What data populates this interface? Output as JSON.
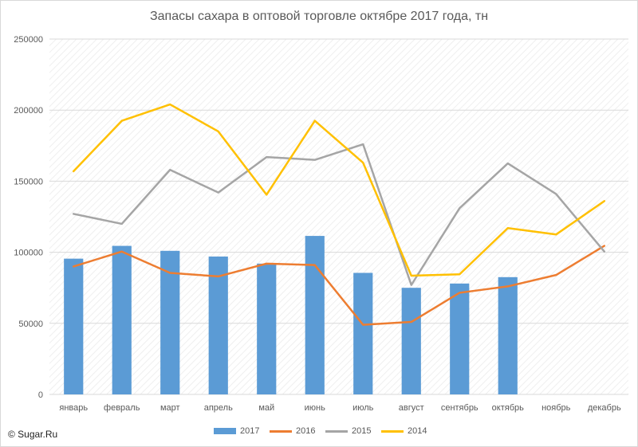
{
  "chart_data": {
    "type": "bar+line",
    "title": "Запасы сахара в оптовой торговле октябре 2017 года, тн",
    "categories": [
      "январь",
      "февраль",
      "март",
      "апрель",
      "май",
      "июнь",
      "июль",
      "август",
      "сентябрь",
      "октябрь",
      "ноябрь",
      "декабрь"
    ],
    "ylim": [
      0,
      250000
    ],
    "yticks": [
      "0",
      "50000",
      "100000",
      "150000",
      "200000",
      "250000"
    ],
    "grid": true,
    "legend_position": "bottom",
    "series": [
      {
        "name": "2017",
        "kind": "bar",
        "color": "#5b9bd5",
        "values": [
          95500,
          104500,
          101000,
          97000,
          92000,
          111500,
          85500,
          75000,
          78000,
          82500,
          null,
          null
        ]
      },
      {
        "name": "2016",
        "kind": "line",
        "color": "#ed7d31",
        "values": [
          90000,
          100500,
          85500,
          83000,
          92000,
          91000,
          49000,
          51000,
          71500,
          76000,
          84000,
          104500
        ]
      },
      {
        "name": "2015",
        "kind": "line",
        "color": "#a5a5a5",
        "values": [
          127000,
          120000,
          158000,
          142000,
          167000,
          165000,
          176000,
          77000,
          131000,
          162500,
          141000,
          100500
        ]
      },
      {
        "name": "2014",
        "kind": "line",
        "color": "#ffc000",
        "values": [
          157000,
          192500,
          204000,
          185000,
          140500,
          192500,
          163000,
          83500,
          84500,
          117000,
          112500,
          136000
        ]
      }
    ]
  },
  "copyright": "© Sugar.Ru"
}
